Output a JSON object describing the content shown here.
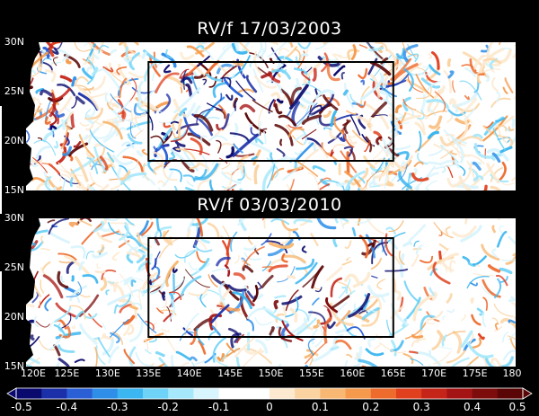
{
  "panels": [
    {
      "title": "RV/f 17/03/2003",
      "lat_ticks": [
        "30N",
        "25N",
        "20N",
        "15N"
      ],
      "density": 0.62,
      "seed": 17
    },
    {
      "title": "RV/f 03/03/2010",
      "lat_ticks": [
        "30N",
        "25N",
        "20N",
        "15N"
      ],
      "density": 0.42,
      "seed": 2010
    }
  ],
  "map_extent": {
    "lon_min": 120,
    "lon_max": 180,
    "lat_min": 15,
    "lat_max": 30
  },
  "box_extent": {
    "lon_min": 135,
    "lon_max": 165,
    "lat_min": 18,
    "lat_max": 28
  },
  "lon_ticks": [
    "120E",
    "125E",
    "130E",
    "135E",
    "140E",
    "145E",
    "150E",
    "155E",
    "160E",
    "165E",
    "170E",
    "175E",
    "180"
  ],
  "colorbar": {
    "ticks": [
      "-0.5",
      "-0.4",
      "-0.3",
      "-0.2",
      "-0.1",
      "0",
      "0.1",
      "0.2",
      "0.3",
      "0.4",
      "0.5"
    ],
    "colors": [
      "#0a0a6e",
      "#1a2fa8",
      "#2a5fd6",
      "#2f8fe8",
      "#3cb6f0",
      "#6fd3f7",
      "#a6e8fb",
      "#d8f4fd",
      "#ffffff",
      "#ffffff",
      "#fde9cf",
      "#fbd3a1",
      "#f8b873",
      "#f59a4c",
      "#ee6b2e",
      "#e0401e",
      "#c52418",
      "#a51414",
      "#7d0c0c",
      "#5a0606"
    ]
  },
  "colors": {
    "background": "#000000",
    "text": "#ffffff",
    "land": "#000000",
    "box": "#000000"
  }
}
